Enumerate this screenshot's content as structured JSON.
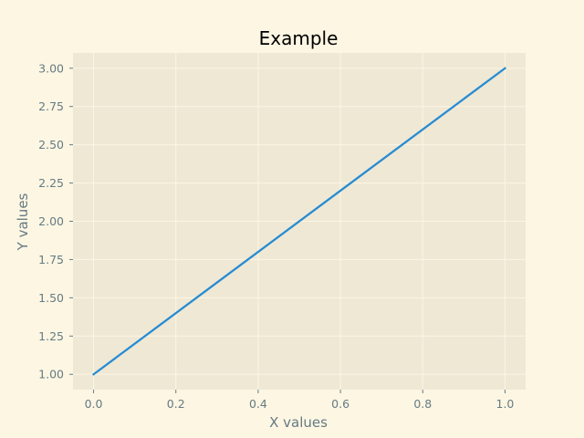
{
  "chart_data": {
    "type": "line",
    "title": "Example",
    "xlabel": "X values",
    "ylabel": "Y values",
    "x": [
      0.0,
      1.0
    ],
    "series": [
      {
        "values": [
          1.0,
          3.0
        ],
        "color": "#268bd2"
      }
    ],
    "xlim": [
      -0.05,
      1.05
    ],
    "ylim": [
      0.9,
      3.1
    ],
    "xticks": [
      0.0,
      0.2,
      0.4,
      0.6,
      0.8,
      1.0
    ],
    "xtick_labels": [
      "0.0",
      "0.2",
      "0.4",
      "0.6",
      "0.8",
      "1.0"
    ],
    "yticks": [
      1.0,
      1.25,
      1.5,
      1.75,
      2.0,
      2.25,
      2.5,
      2.75,
      3.0
    ],
    "ytick_labels": [
      "1.00",
      "1.25",
      "1.50",
      "1.75",
      "2.00",
      "2.25",
      "2.50",
      "2.75",
      "3.00"
    ],
    "grid": true,
    "colors": {
      "figure_background": "#fdf6e3",
      "plot_background": "#eee8d5",
      "grid": "#fdf6e3",
      "text": "#657b83",
      "title": "#000000"
    }
  }
}
